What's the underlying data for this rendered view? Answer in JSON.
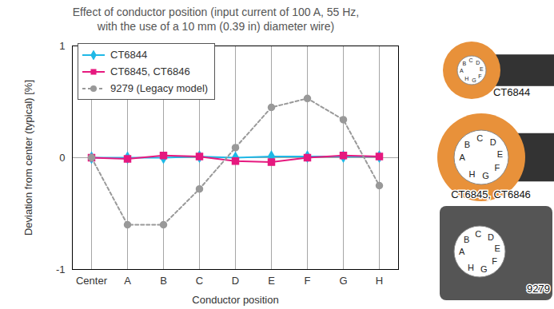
{
  "chart_data": {
    "type": "line",
    "title": [
      "Effect of conductor position (input current of 100 A, 55 Hz,",
      "with the use of a 10 mm (0.39 in) diameter wire)"
    ],
    "x_label": "Conductor position",
    "y_label": "Deviation from center (typical) [%]",
    "categories": [
      "Center",
      "A",
      "B",
      "C",
      "D",
      "E",
      "F",
      "G",
      "H"
    ],
    "series": [
      {
        "name": "CT6844",
        "color": "#1fb8e6",
        "marker": "diamond",
        "line_style": "solid",
        "values": [
          0,
          0,
          0,
          0.01,
          0,
          0.01,
          0.01,
          0.01,
          0.01
        ]
      },
      {
        "name": "CT6845, CT6846",
        "color": "#e6197f",
        "marker": "square",
        "line_style": "solid",
        "values": [
          0,
          -0.01,
          0.02,
          0.01,
          -0.03,
          -0.04,
          0,
          0.02,
          0.01
        ]
      },
      {
        "name": "9279 (Legacy model)",
        "color": "#999999",
        "marker": "circle",
        "line_style": "dashed",
        "values": [
          0,
          -0.6,
          -0.6,
          -0.28,
          0.09,
          0.45,
          0.53,
          0.34,
          -0.25
        ]
      }
    ],
    "ylim": [
      -1,
      1
    ],
    "yticks": [
      -1,
      0,
      1
    ],
    "grid": true,
    "legend": "top-left"
  },
  "images": [
    {
      "label": "CT6844",
      "color": "#e8913a",
      "positions": [
        "A",
        "B",
        "C",
        "D",
        "E",
        "F",
        "G",
        "H"
      ]
    },
    {
      "label": "CT6845, CT6846",
      "color": "#e8913a",
      "positions": [
        "A",
        "B",
        "C",
        "D",
        "E",
        "F",
        "G",
        "H"
      ]
    },
    {
      "label": "9279",
      "color": "#555555",
      "positions": [
        "A",
        "B",
        "C",
        "D",
        "E",
        "F",
        "G",
        "H"
      ]
    }
  ]
}
